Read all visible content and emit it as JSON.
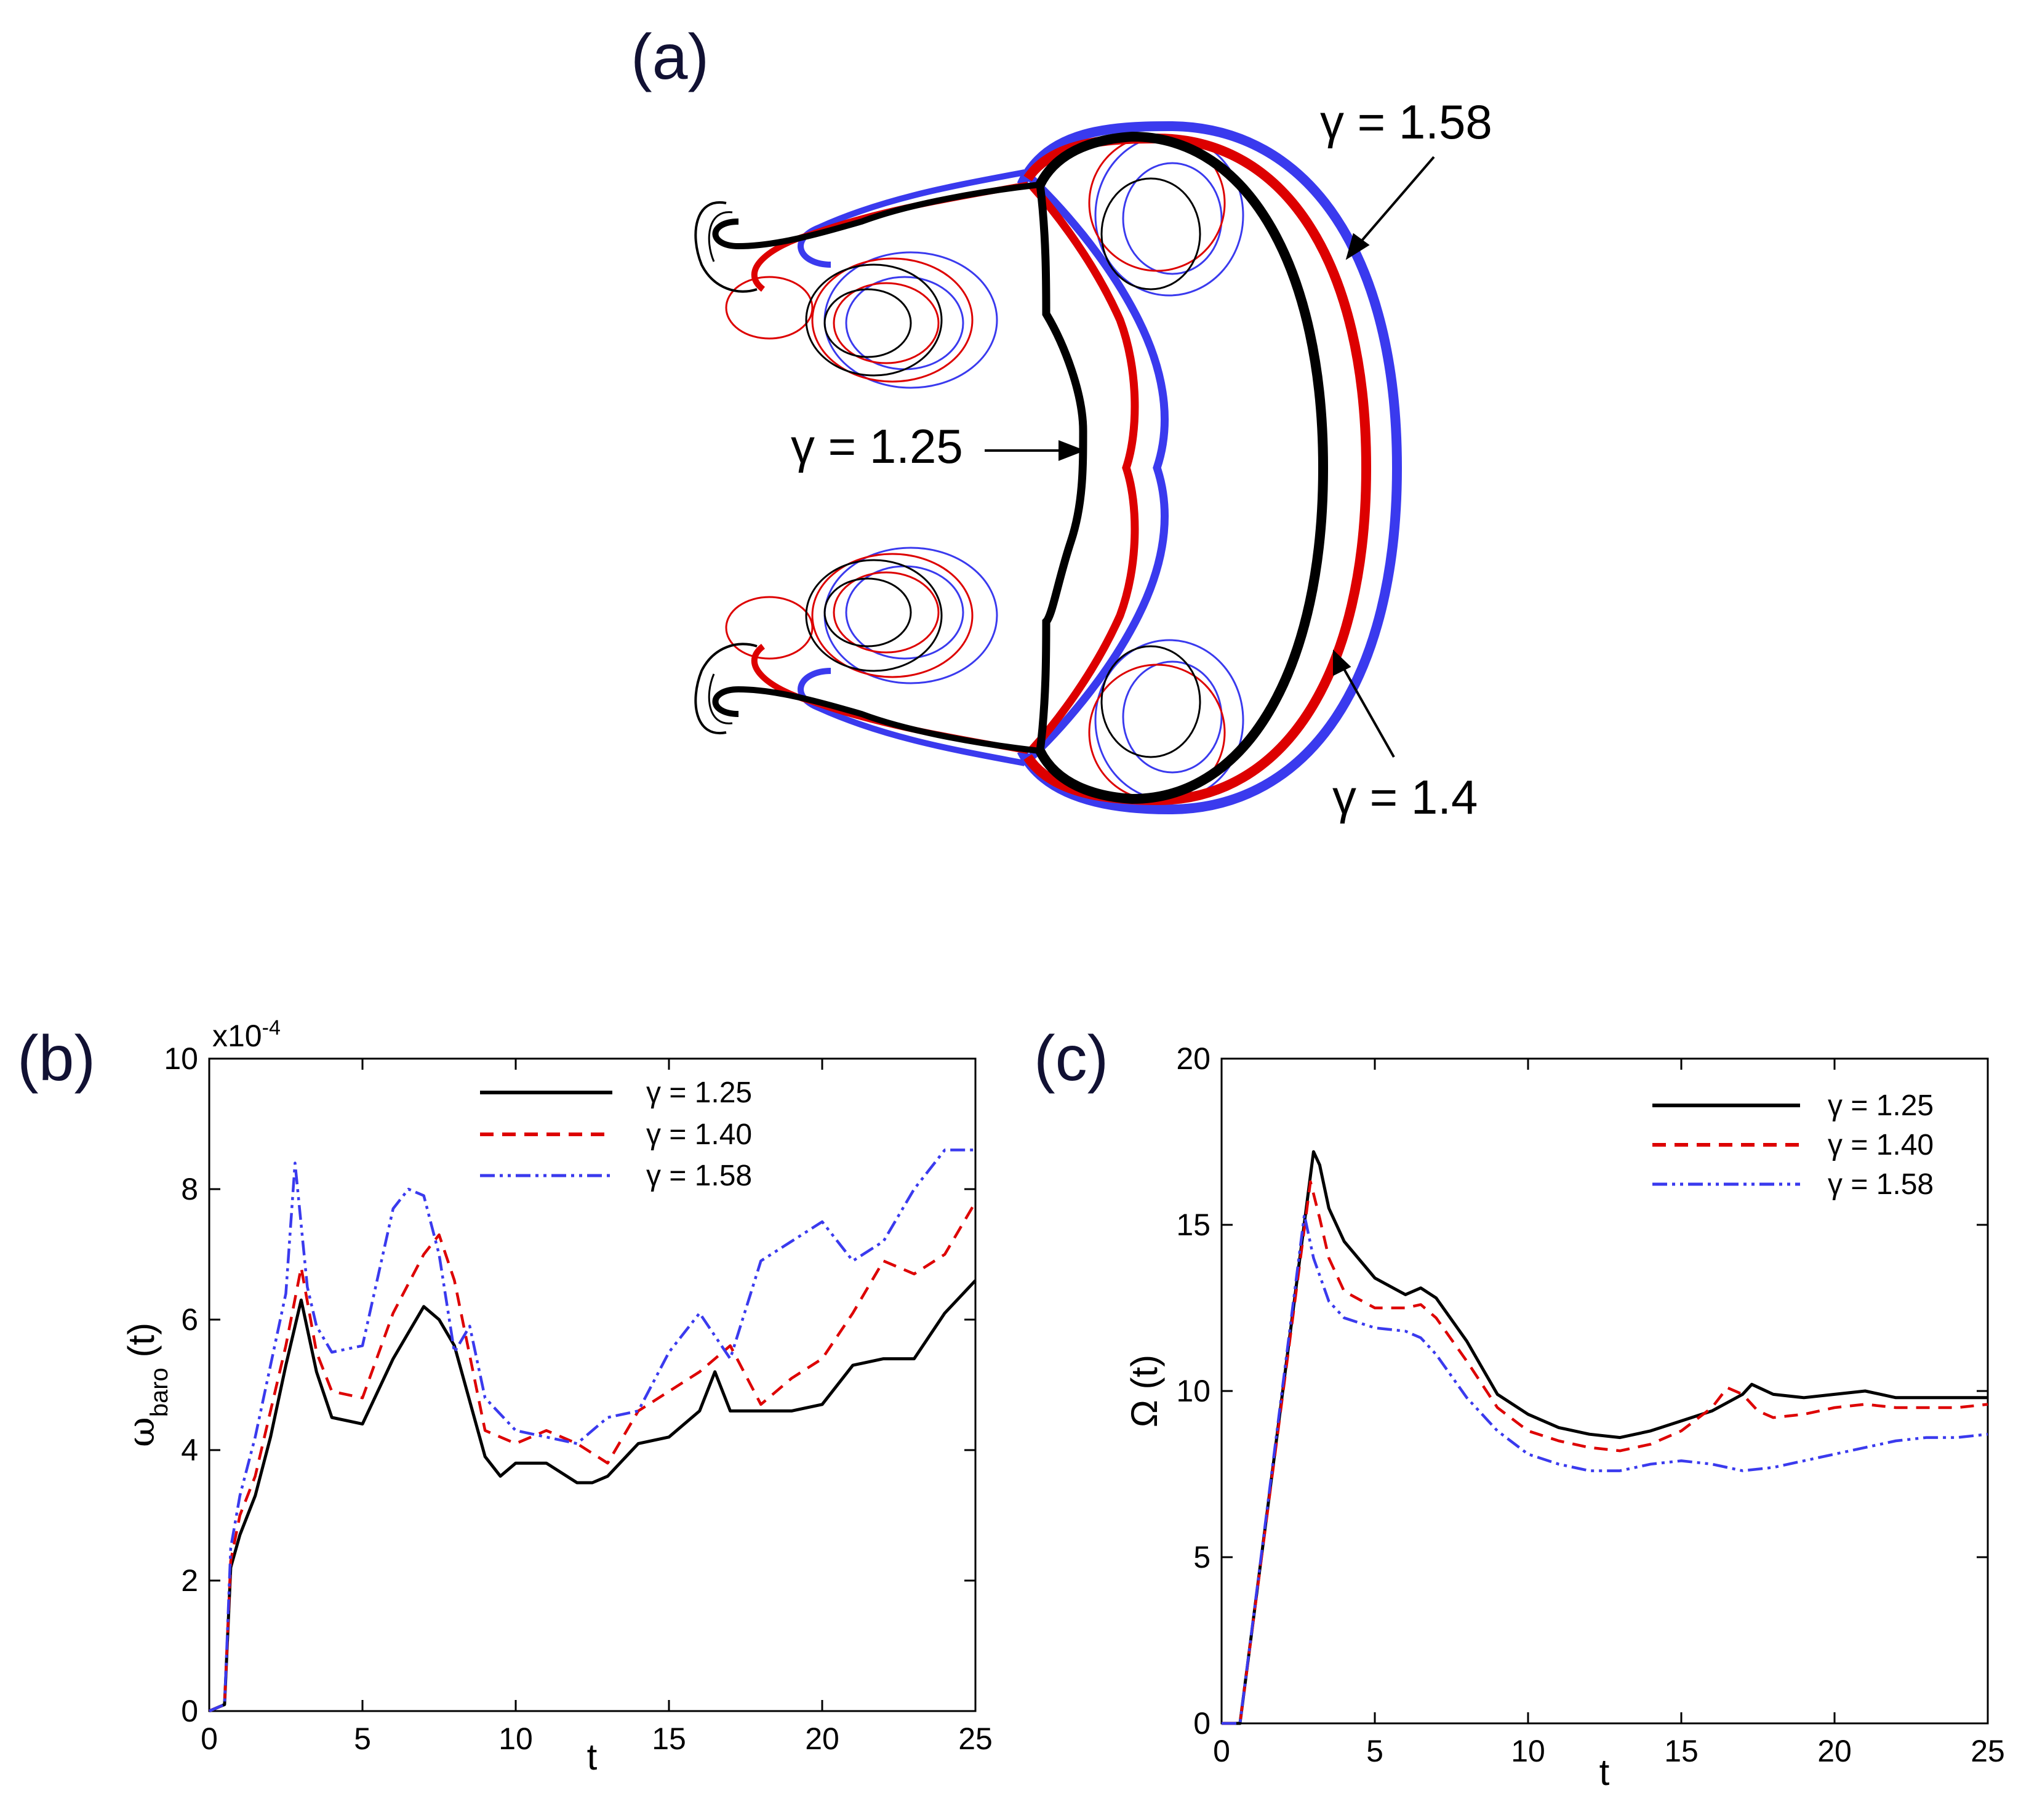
{
  "panel_a": {
    "label": "(a)",
    "annotations": [
      "γ = 1.58",
      "γ = 1.25",
      "γ = 1.4"
    ],
    "colors": [
      "#000000",
      "#dd0000",
      "#3a3aee"
    ]
  },
  "chart_data": [
    {
      "label": "(b)",
      "type": "line",
      "xlabel": "t",
      "ylabel": "ω",
      "ylabel_sub": "baro",
      "ylabel_suffix": " (t)",
      "multiplier": "x10",
      "multiplier_exp": "-4",
      "xlim": [
        0,
        25
      ],
      "ylim": [
        0,
        10
      ],
      "xticks": [
        0,
        5,
        10,
        15,
        20,
        25
      ],
      "yticks": [
        0,
        2,
        4,
        6,
        8,
        10
      ],
      "legend_position": "top-center",
      "series": [
        {
          "name": "γ = 1.25",
          "color": "#000000",
          "dash": "solid",
          "x": [
            0,
            0.5,
            0.7,
            1,
            1.5,
            2,
            2.5,
            3,
            3.5,
            4,
            5,
            6,
            7,
            7.5,
            8,
            9,
            9.5,
            10,
            11,
            12,
            12.5,
            13,
            14,
            15,
            16,
            16.5,
            17,
            18,
            19,
            20,
            21,
            22,
            23,
            24,
            25
          ],
          "y": [
            0,
            0.1,
            2.2,
            2.7,
            3.3,
            4.2,
            5.3,
            6.3,
            5.2,
            4.5,
            4.4,
            5.4,
            6.2,
            6.0,
            5.6,
            3.9,
            3.6,
            3.8,
            3.8,
            3.5,
            3.5,
            3.6,
            4.1,
            4.2,
            4.6,
            5.2,
            4.6,
            4.6,
            4.6,
            4.7,
            5.3,
            5.4,
            5.4,
            6.1,
            6.6
          ]
        },
        {
          "name": "γ = 1.40",
          "color": "#dd0000",
          "dash": "dashed",
          "x": [
            0,
            0.5,
            0.7,
            1,
            1.5,
            2,
            2.5,
            3,
            3.5,
            4,
            5,
            6,
            7,
            7.5,
            8,
            9,
            10,
            11,
            12,
            13,
            14,
            15,
            16,
            17,
            18,
            19,
            20,
            21,
            22,
            23,
            24,
            25
          ],
          "y": [
            0,
            0.1,
            2.3,
            3.0,
            3.6,
            4.6,
            5.6,
            6.8,
            5.5,
            4.9,
            4.8,
            6.1,
            7.0,
            7.3,
            6.6,
            4.3,
            4.1,
            4.3,
            4.1,
            3.8,
            4.6,
            4.9,
            5.2,
            5.6,
            4.7,
            5.1,
            5.4,
            6.1,
            6.9,
            6.7,
            7.0,
            7.8
          ]
        },
        {
          "name": "γ = 1.58",
          "color": "#3a3aee",
          "dash": "dashdot",
          "x": [
            0,
            0.5,
            0.7,
            1,
            1.5,
            2,
            2.5,
            2.8,
            3.2,
            3.5,
            4,
            5,
            6,
            6.5,
            7,
            7.5,
            8,
            8.5,
            9,
            10,
            11,
            12,
            13,
            14,
            15,
            16,
            17,
            18,
            19,
            20,
            21,
            22,
            23,
            24,
            25
          ],
          "y": [
            0,
            0.1,
            2.5,
            3.3,
            4.2,
            5.3,
            6.4,
            8.4,
            6.5,
            5.9,
            5.5,
            5.6,
            7.7,
            8.0,
            7.9,
            7.0,
            5.5,
            5.9,
            4.8,
            4.3,
            4.2,
            4.1,
            4.5,
            4.6,
            5.5,
            6.1,
            5.4,
            6.9,
            7.2,
            7.5,
            6.9,
            7.2,
            8.0,
            8.6,
            8.6
          ]
        }
      ]
    },
    {
      "label": "(c)",
      "type": "line",
      "xlabel": "t",
      "ylabel": "Ω (t)",
      "xlim": [
        0,
        25
      ],
      "ylim": [
        0,
        20
      ],
      "xticks": [
        0,
        5,
        10,
        15,
        20,
        25
      ],
      "yticks": [
        0,
        5,
        10,
        15,
        20
      ],
      "legend_position": "top-right",
      "series": [
        {
          "name": "γ = 1.25",
          "color": "#000000",
          "dash": "solid",
          "x": [
            0,
            0.6,
            3.0,
            3.2,
            3.5,
            4,
            5,
            6,
            6.5,
            7,
            8,
            9,
            10,
            11,
            12,
            13,
            14,
            15,
            16,
            17,
            17.3,
            18,
            19,
            20,
            21,
            22,
            23,
            24,
            25
          ],
          "y": [
            0,
            0,
            17.2,
            16.8,
            15.5,
            14.5,
            13.4,
            12.9,
            13.1,
            12.8,
            11.5,
            9.9,
            9.3,
            8.9,
            8.7,
            8.6,
            8.8,
            9.1,
            9.4,
            9.9,
            10.2,
            9.9,
            9.8,
            9.9,
            10.0,
            9.8,
            9.8,
            9.8,
            9.8
          ]
        },
        {
          "name": "γ = 1.40",
          "color": "#dd0000",
          "dash": "dashed",
          "x": [
            0,
            0.6,
            2.9,
            3.2,
            3.5,
            4,
            5,
            6,
            6.5,
            7,
            8,
            9,
            10,
            11,
            12,
            13,
            14,
            15,
            16,
            16.5,
            17,
            17.5,
            18,
            19,
            20,
            21,
            22,
            23,
            24,
            25
          ],
          "y": [
            0,
            0,
            16.3,
            15.2,
            14.0,
            13.0,
            12.5,
            12.5,
            12.6,
            12.2,
            10.9,
            9.5,
            8.8,
            8.5,
            8.3,
            8.2,
            8.4,
            8.8,
            9.5,
            10.1,
            9.9,
            9.4,
            9.2,
            9.3,
            9.5,
            9.6,
            9.5,
            9.5,
            9.5,
            9.6
          ]
        },
        {
          "name": "γ = 1.58",
          "color": "#3a3aee",
          "dash": "dashdot",
          "x": [
            0,
            0.6,
            2.7,
            3.0,
            3.5,
            4,
            5,
            6,
            6.5,
            7,
            8,
            9,
            10,
            11,
            12,
            13,
            14,
            15,
            16,
            17,
            18,
            19,
            20,
            21,
            22,
            23,
            24,
            25
          ],
          "y": [
            0,
            0,
            15.3,
            14.0,
            12.7,
            12.2,
            11.9,
            11.8,
            11.6,
            11.1,
            9.8,
            8.8,
            8.1,
            7.8,
            7.6,
            7.6,
            7.8,
            7.9,
            7.8,
            7.6,
            7.7,
            7.9,
            8.1,
            8.3,
            8.5,
            8.6,
            8.6,
            8.7
          ]
        }
      ]
    }
  ]
}
